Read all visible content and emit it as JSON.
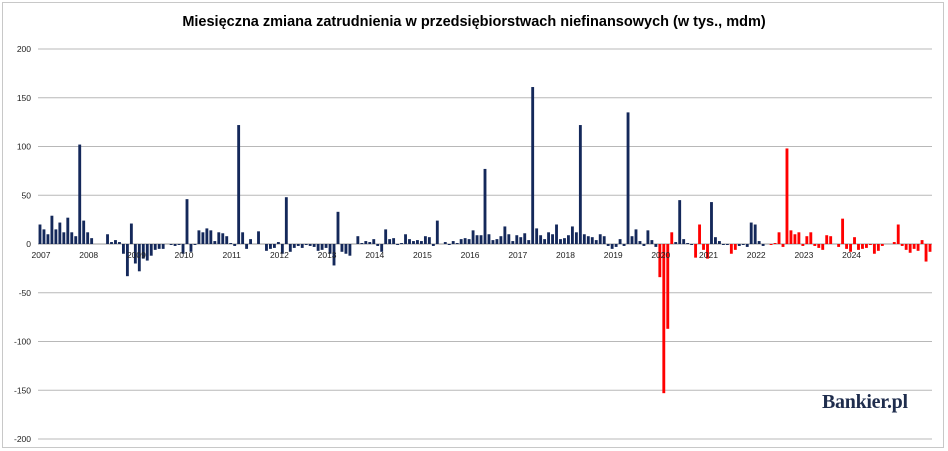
{
  "chart_data": {
    "type": "bar",
    "title": "Miesięczna zmiana zatrudnienia w przedsiębiorstwach niefinansowych (w tys., mdm)",
    "xlabel": "",
    "ylabel": "",
    "ylim": [
      -200,
      200
    ],
    "y_ticks": [
      200,
      150,
      100,
      50,
      0,
      -50,
      -100,
      -150,
      -200
    ],
    "grid": true,
    "legend": "none",
    "year_labels": [
      "2007",
      "2008",
      "2009",
      "2010",
      "2011",
      "2012",
      "2013",
      "2014",
      "2015",
      "2016",
      "2017",
      "2018",
      "2019",
      "2020",
      "2021",
      "2022",
      "2023",
      "2024"
    ],
    "series": [
      {
        "start": "2007-01",
        "positive_color": "#14285a",
        "negative_color": "#14285a",
        "values": [
          20,
          15,
          10,
          29,
          15,
          22,
          12,
          27,
          12,
          8,
          102,
          24,
          12,
          6,
          0,
          0,
          0,
          10,
          2,
          4,
          2,
          -10,
          -33,
          21,
          -20,
          -28,
          -15,
          -17,
          -12,
          -6,
          -5,
          -5,
          0,
          -1,
          -2,
          -1,
          -10,
          46,
          -8,
          -1,
          14,
          12,
          16,
          14,
          3,
          12,
          11,
          8,
          1,
          -2,
          122,
          12,
          -5,
          5,
          0,
          13,
          0,
          -7,
          -5,
          -4,
          2,
          -10,
          48,
          -8,
          -4,
          -2,
          -4,
          -1,
          -2,
          -3,
          -7,
          -6,
          -4,
          -10,
          -22,
          33,
          -8,
          -10,
          -12,
          0,
          8,
          1,
          3,
          2,
          5,
          -2,
          -8,
          15,
          5,
          6,
          -1,
          1,
          10,
          5,
          3,
          4,
          3,
          8,
          7,
          -2,
          24,
          0,
          2,
          -1,
          3,
          1,
          5,
          6,
          5,
          14,
          9,
          9,
          77,
          10,
          4,
          5,
          8,
          18,
          10,
          3,
          9,
          7,
          11,
          4,
          161,
          16,
          9,
          5,
          12,
          10,
          20,
          5,
          6,
          9,
          18,
          12,
          122,
          10,
          8,
          7,
          4,
          10,
          8,
          -2,
          -5,
          -3,
          5,
          -2,
          135,
          8,
          15,
          3,
          -2,
          14,
          4,
          -3,
          -6,
          -2,
          2,
          10,
          2,
          45,
          5,
          1,
          -1,
          1,
          -1,
          -1,
          67,
          43,
          7,
          3,
          -1,
          -1,
          0,
          0,
          -2,
          -1,
          -3,
          22,
          20,
          3,
          -2,
          0,
          -1,
          1,
          12,
          -3,
          98,
          14,
          10,
          12,
          -2,
          8,
          12,
          -2,
          -4,
          -6,
          9,
          8,
          0,
          -3,
          26,
          -5,
          -8,
          7,
          -6,
          -5,
          -4,
          -1,
          -10,
          -7,
          -2,
          0,
          0,
          2,
          20,
          -2,
          -6,
          -9,
          -5,
          -7,
          4,
          -18,
          -8
        ],
        "red_overrides": {
          "2020-01": -34,
          "2020-02": -153,
          "2020-03": -87,
          "2020-04": 12,
          "2020-10": -14,
          "2020-11": 20,
          "2020-12": -6,
          "2021-01": -15,
          "2021-07": -10,
          "2021-08": -6
        },
        "red_from": "2022-05"
      }
    ]
  },
  "watermark": {
    "brand": "Bankier.pl"
  }
}
